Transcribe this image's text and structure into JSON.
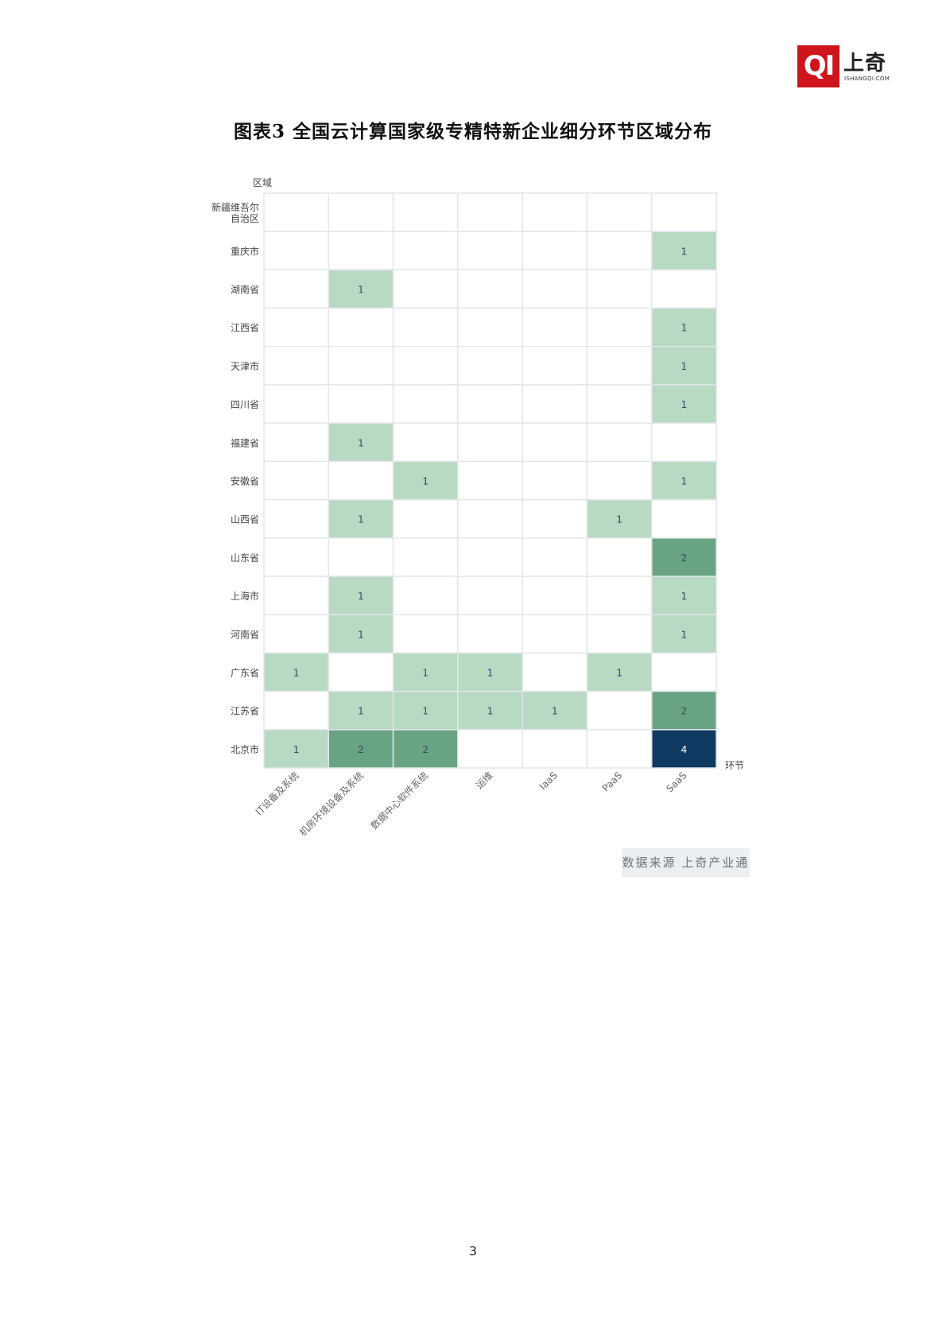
{
  "logo": {
    "mark": "QI",
    "cn": "上奇",
    "en": "ISHANGQI.COM"
  },
  "figure_title": "图表3 全国云计算国家级专精特新企业细分环节区域分布",
  "source_label": "数据来源 上奇产业通",
  "page_number": "3",
  "colors": {
    "empty": "#ffffff",
    "one": "#b8d9c2",
    "two": "#68a382",
    "four": "#0f3a62",
    "grid": "#e3e6ec",
    "logo_red": "#d0141c"
  },
  "chart_data": {
    "type": "heatmap",
    "title": "图表3 全国云计算国家级专精特新企业细分环节区域分布",
    "xlabel": "环节",
    "ylabel": "区域",
    "x_categories": [
      "IT设备及系统",
      "机房环境设备及系统",
      "数据中心软件系统",
      "运维",
      "IaaS",
      "PaaS",
      "SaaS"
    ],
    "y_categories": [
      "新疆维吾尔自治区",
      "重庆市",
      "湖南省",
      "江西省",
      "天津市",
      "四川省",
      "福建省",
      "安徽省",
      "山西省",
      "山东省",
      "上海市",
      "河南省",
      "广东省",
      "江苏省",
      "北京市"
    ],
    "values": [
      [
        null,
        null,
        null,
        null,
        null,
        null,
        null
      ],
      [
        null,
        null,
        null,
        null,
        null,
        null,
        1
      ],
      [
        null,
        1,
        null,
        null,
        null,
        null,
        null
      ],
      [
        null,
        null,
        null,
        null,
        null,
        null,
        1
      ],
      [
        null,
        null,
        null,
        null,
        null,
        null,
        1
      ],
      [
        null,
        null,
        null,
        null,
        null,
        null,
        1
      ],
      [
        null,
        1,
        null,
        null,
        null,
        null,
        null
      ],
      [
        null,
        null,
        1,
        null,
        null,
        null,
        1
      ],
      [
        null,
        1,
        null,
        null,
        null,
        1,
        null
      ],
      [
        null,
        null,
        null,
        null,
        null,
        null,
        2
      ],
      [
        null,
        1,
        null,
        null,
        null,
        null,
        1
      ],
      [
        null,
        1,
        null,
        null,
        null,
        null,
        1
      ],
      [
        1,
        null,
        1,
        1,
        null,
        1,
        null
      ],
      [
        null,
        1,
        1,
        1,
        1,
        null,
        2
      ],
      [
        1,
        2,
        2,
        null,
        null,
        null,
        4
      ]
    ],
    "grid": true
  }
}
